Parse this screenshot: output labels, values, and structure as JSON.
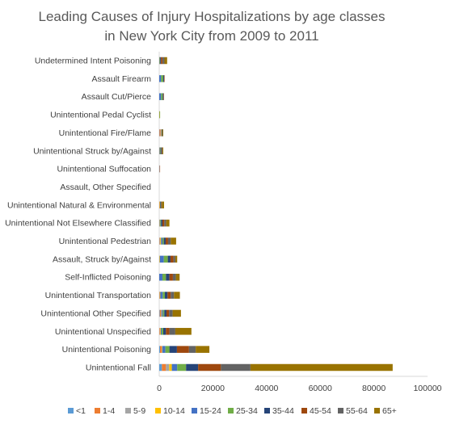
{
  "chart_data": {
    "type": "bar",
    "orientation": "horizontal",
    "stacked": true,
    "title_lines": [
      "Leading Causes of Injury Hospitalizations by age classes",
      "in New York City from 2009 to 2011"
    ],
    "categories": [
      "Undetermined Intent Poisoning",
      "Assault Firearm",
      "Assault Cut/Pierce",
      "Unintentional Pedal Cyclist",
      "Unintentional Fire/Flame",
      "Unintentional Struck by/Against",
      "Unintentional Suffocation",
      "Assault, Other Specified",
      "Unintentional Natural & Environmental",
      "Unintentional Not Elsewhere Classified",
      "Unintentional Pedestrian",
      "Assault, Struck by/Against",
      "Self-Inflicted Poisoning",
      "Unintentional Transportation",
      "Unintentional Other Specified",
      "Unintentional Unspecified",
      "Unintentional Poisoning",
      "Unintentional Fall"
    ],
    "series": [
      {
        "name": "<1",
        "color": "#5B9BD5",
        "values": [
          0,
          0,
          0,
          0,
          100,
          0,
          150,
          0,
          0,
          0,
          0,
          0,
          0,
          0,
          200,
          0,
          300,
          1000
        ]
      },
      {
        "name": "1-4",
        "color": "#ED7D31",
        "values": [
          50,
          0,
          0,
          0,
          400,
          0,
          100,
          0,
          100,
          0,
          100,
          0,
          0,
          100,
          400,
          200,
          600,
          1500
        ]
      },
      {
        "name": "5-9",
        "color": "#A5A5A5",
        "values": [
          0,
          0,
          0,
          0,
          200,
          0,
          0,
          0,
          100,
          100,
          300,
          0,
          0,
          150,
          300,
          200,
          200,
          1200
        ]
      },
      {
        "name": "10-14",
        "color": "#FFC000",
        "values": [
          0,
          0,
          0,
          100,
          100,
          100,
          0,
          0,
          100,
          100,
          300,
          200,
          0,
          150,
          100,
          200,
          100,
          1000
        ]
      },
      {
        "name": "15-24",
        "color": "#4472C4",
        "values": [
          100,
          700,
          700,
          50,
          100,
          200,
          0,
          0,
          100,
          200,
          500,
          1500,
          1200,
          900,
          400,
          300,
          1100,
          2000
        ]
      },
      {
        "name": "25-34",
        "color": "#70AD47",
        "values": [
          200,
          800,
          600,
          50,
          100,
          200,
          0,
          0,
          100,
          300,
          500,
          1500,
          1300,
          800,
          500,
          600,
          1500,
          3300
        ]
      },
      {
        "name": "35-44",
        "color": "#264478",
        "values": [
          300,
          300,
          300,
          0,
          100,
          300,
          0,
          0,
          100,
          500,
          700,
          1000,
          1300,
          1000,
          800,
          1000,
          2800,
          4500
        ]
      },
      {
        "name": "45-54",
        "color": "#9E480E",
        "values": [
          600,
          100,
          100,
          0,
          100,
          200,
          0,
          0,
          200,
          700,
          900,
          1100,
          1300,
          1200,
          1000,
          1300,
          4500,
          8500
        ]
      },
      {
        "name": "55-64",
        "color": "#636363",
        "values": [
          700,
          0,
          0,
          0,
          100,
          200,
          0,
          0,
          200,
          700,
          1000,
          700,
          1100,
          1200,
          1300,
          2200,
          2500,
          11000
        ]
      },
      {
        "name": "65+",
        "color": "#997300",
        "values": [
          1000,
          0,
          0,
          0,
          200,
          300,
          0,
          0,
          800,
          1200,
          2000,
          700,
          1400,
          2200,
          3100,
          6000,
          5100,
          53000
        ]
      }
    ],
    "xlim": [
      0,
      100000
    ],
    "xticks": [
      0,
      20000,
      40000,
      60000,
      80000,
      100000
    ],
    "xtick_labels": [
      "0",
      "20000",
      "40000",
      "60000",
      "80000",
      "100000"
    ],
    "grid": false,
    "legend_position": "bottom"
  }
}
